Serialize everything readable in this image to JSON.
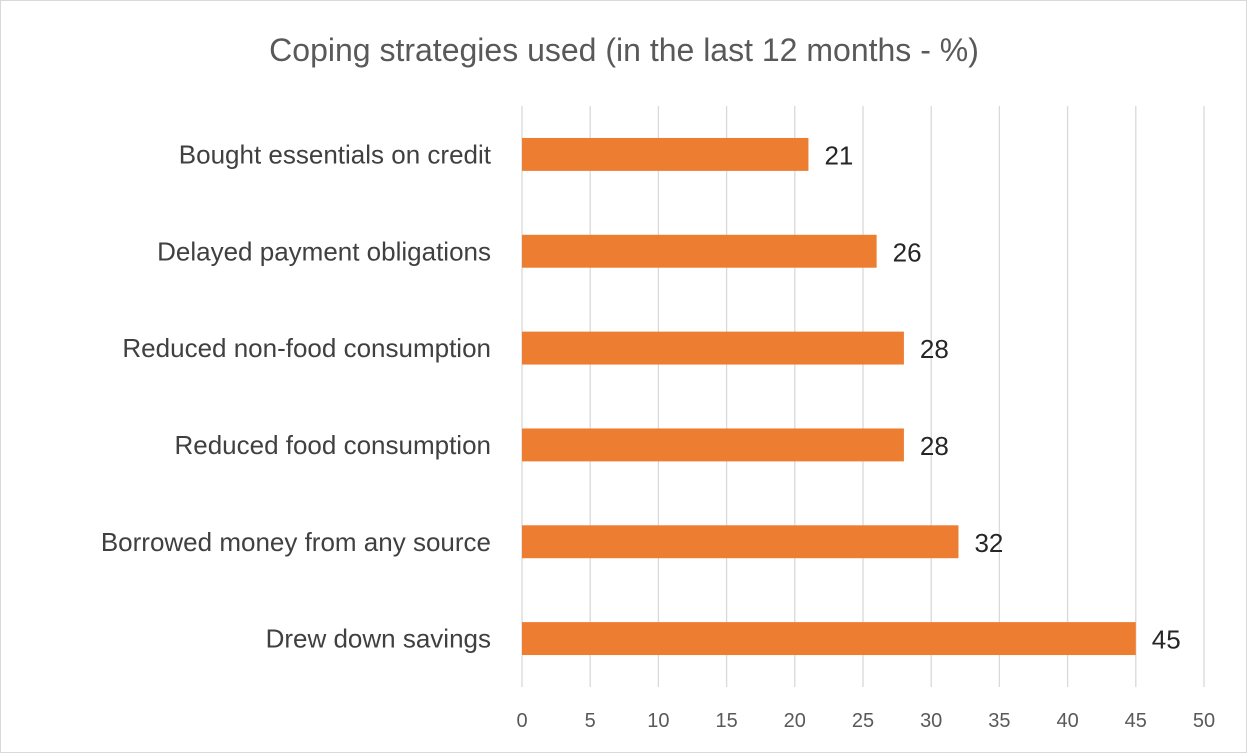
{
  "chart_data": {
    "type": "bar",
    "orientation": "horizontal",
    "title": "Coping strategies used (in the last 12 months - %)",
    "xlabel": "",
    "ylabel": "",
    "categories": [
      "Bought essentials on credit",
      "Delayed payment obligations",
      "Reduced non-food consumption",
      "Reduced food consumption",
      "Borrowed money from any source",
      "Drew down savings"
    ],
    "values": [
      21,
      26,
      28,
      28,
      32,
      45
    ],
    "data_labels": [
      "21",
      "26",
      "28",
      "28",
      "32",
      "45"
    ],
    "xlim": [
      0,
      50
    ],
    "ticks": [
      "0",
      "5",
      "10",
      "15",
      "20",
      "25",
      "30",
      "35",
      "40",
      "45",
      "50"
    ],
    "grid": "vertical",
    "legend": "none",
    "bar_color": "#ED7D31",
    "grid_color": "#d9d9d9"
  }
}
